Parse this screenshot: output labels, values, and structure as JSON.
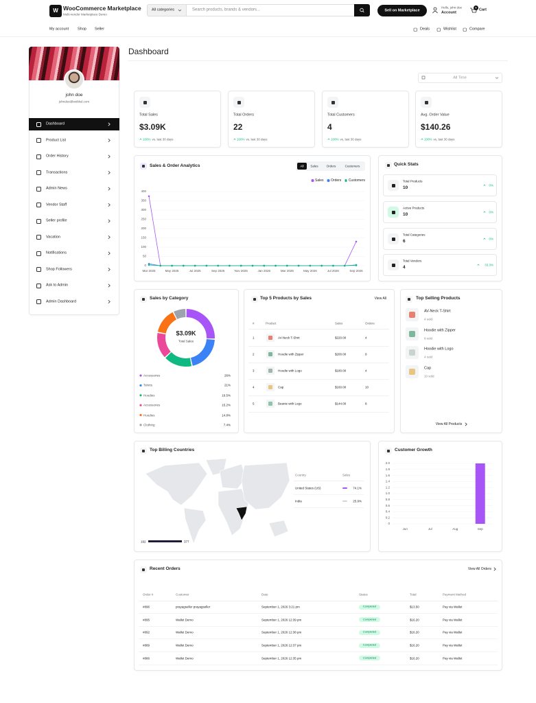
{
  "header": {
    "logo": "W",
    "brand": "WooCommerce Marketplace",
    "tagline": "Multi-vendor Marketplace Demo",
    "category_select": "All categories",
    "search_placeholder": "Search products, brands & vendors...",
    "sell_button": "Sell on Marketplace",
    "greeting": "Hello, john doe",
    "account": "Account",
    "cart_count": "0",
    "cart": "Cart"
  },
  "nav": {
    "left": [
      "My account",
      "Shop",
      "Seller"
    ],
    "right": [
      "Deals",
      "Wishlist",
      "Compare"
    ]
  },
  "sidebar": {
    "name": "john doe",
    "email": "johndoe@webkul.com",
    "menu": [
      "Dashboard",
      "Product List",
      "Order History",
      "Transactions",
      "Admin News",
      "Vendor Staff",
      "Seller profile",
      "Vacation",
      "Notifications",
      "Shop Followers",
      "Ask to Admin",
      "Admin Dashboard"
    ]
  },
  "dashboard": {
    "title": "Dashboard",
    "period": "All Time",
    "stats": [
      {
        "label": "Total Sales",
        "value": "$3.09K",
        "change": "100%",
        "note": "vs. last 30 days"
      },
      {
        "label": "Total Orders",
        "value": "22",
        "change": "100%",
        "note": "vs. last 30 days"
      },
      {
        "label": "Total Customers",
        "value": "4",
        "change": "100%",
        "note": "vs. last 30 days"
      },
      {
        "label": "Avg. Order Value",
        "value": "$140.26",
        "change": "100%",
        "note": "vs. last 30 days"
      }
    ]
  },
  "chart_data": [
    {
      "type": "line",
      "title": "Sales & Order Analytics",
      "tabs": [
        "All",
        "Sales",
        "Orders",
        "Customers"
      ],
      "categories": [
        "Mar 2025",
        null,
        "May 2025",
        null,
        "Jul 2025",
        null,
        "Sep 2025",
        null,
        "Nov 2025",
        null,
        "Jan 2026",
        null,
        "Mar 2026",
        null,
        "May 2026",
        null,
        "Jul 2026",
        null,
        "Sep 2026"
      ],
      "series": [
        {
          "name": "Sales",
          "color": "#a855f7",
          "values": [
            375,
            0,
            0,
            0,
            0,
            0,
            0,
            0,
            0,
            0,
            0,
            0,
            0,
            0,
            0,
            0,
            0,
            0,
            130
          ]
        },
        {
          "name": "Orders",
          "color": "#3b82f6",
          "values": [
            10,
            0,
            0,
            0,
            0,
            0,
            0,
            0,
            0,
            0,
            0,
            0,
            0,
            0,
            0,
            0,
            0,
            0,
            2
          ]
        },
        {
          "name": "Customers",
          "color": "#10b981",
          "values": [
            4,
            0,
            0,
            0,
            0,
            0,
            0,
            0,
            0,
            0,
            0,
            0,
            0,
            0,
            0,
            0,
            0,
            0,
            4
          ]
        }
      ],
      "ylim": [
        0,
        400
      ],
      "yticks": [
        0,
        50,
        100,
        150,
        200,
        250,
        300,
        350,
        400
      ],
      "grid": true
    },
    {
      "type": "pie",
      "title": "Sales by Category",
      "center_value": "$3.09K",
      "center_label": "Total Sales",
      "categories": [
        "Accessories",
        "Tshirts",
        "Hoodies",
        "Accessories",
        "Hoodies",
        "Clothing"
      ],
      "values": [
        26,
        21,
        16.5,
        15.2,
        14.8,
        7.4
      ],
      "value_labels": [
        "26%",
        "21%",
        "16.5%",
        "15.2%",
        "14.8%",
        "7.4%"
      ],
      "colors": [
        "#a855f7",
        "#3b82f6",
        "#10b981",
        "#ec4899",
        "#f97316",
        "#9ca3af"
      ]
    },
    {
      "type": "bar",
      "title": "Customer Growth",
      "categories": [
        "Jun",
        "Jul",
        "Aug",
        "Sep"
      ],
      "values": [
        0,
        0,
        0,
        2
      ],
      "color": "#a855f7",
      "ylim": [
        0,
        2
      ],
      "yticks": [
        0,
        0.2,
        0.4,
        0.6,
        0.8,
        {
          "value": 1,
          "label": "1.0"
        },
        1.2,
        1.4,
        1.6,
        1.8,
        {
          "value": 2,
          "label": "2.0"
        }
      ],
      "grid": true
    }
  ],
  "quick_stats": {
    "title": "Quick Stats",
    "items": [
      {
        "label": "Total Products",
        "value": "10",
        "change": "0%"
      },
      {
        "label": "Active Products",
        "value": "10",
        "change": "0%"
      },
      {
        "label": "Total Categories",
        "value": "6",
        "change": "0%"
      },
      {
        "label": "Total Vendors",
        "value": "4",
        "change": "33.3%"
      }
    ]
  },
  "top_products": {
    "title": "Top 5 Products by Sales",
    "link": "View All",
    "columns": [
      "#",
      "Product",
      "Sales",
      "Orders"
    ],
    "rows": [
      [
        "1",
        "AV-Neck T-Shirt",
        "$220.00",
        "4"
      ],
      [
        "2",
        "Hoodie with Zipper",
        "$200.00",
        "9"
      ],
      [
        "3",
        "Hoodie with Logo",
        "$180.00",
        "4"
      ],
      [
        "4",
        "Cap",
        "$160.00",
        "10"
      ],
      [
        "5",
        "Beanie with Logo",
        "$144.00",
        "8"
      ]
    ]
  },
  "top_selling": {
    "title": "Top Selling Products",
    "items": [
      {
        "name": "AV-Neck T-Shirt",
        "sold": "4 sold"
      },
      {
        "name": "Hoodie with Zipper",
        "sold": "9 sold"
      },
      {
        "name": "Hoodie with Logo",
        "sold": "4 sold"
      },
      {
        "name": "Cap",
        "sold": "10 sold"
      }
    ],
    "link": "View All Products"
  },
  "billing": {
    "title": "Top Billing Countries",
    "scale_min": "192",
    "scale_max": "377",
    "columns": [
      "Country",
      "Sales"
    ],
    "rows": [
      [
        "United States (US)",
        "74.1%"
      ],
      [
        "India",
        "25.9%"
      ]
    ]
  },
  "recent_orders": {
    "title": "Recent Orders",
    "link": "View All Orders",
    "columns": [
      "Order #",
      "Customer",
      "Date",
      "Status",
      "Total",
      "Payment Method"
    ],
    "rows": [
      [
        "#896",
        "prayagseller prayagseller",
        "September 1, 2026 3:21 pm",
        "Completed",
        "$13.50",
        "Pay via Wallet"
      ],
      [
        "#895",
        "Wallet Demo",
        "September 1, 2026 12:39 pm",
        "Completed",
        "$16.20",
        "Pay via Wallet"
      ],
      [
        "#892",
        "Wallet Demo",
        "September 1, 2026 12:38 pm",
        "Completed",
        "$16.20",
        "Pay via Wallet"
      ],
      [
        "#889",
        "Wallet Demo",
        "September 1, 2026 12:37 pm",
        "Completed",
        "$16.20",
        "Pay via Wallet"
      ],
      [
        "#886",
        "Wallet Demo",
        "September 1, 2026 12:35 pm",
        "Completed",
        "$16.20",
        "Pay via Wallet"
      ]
    ]
  }
}
